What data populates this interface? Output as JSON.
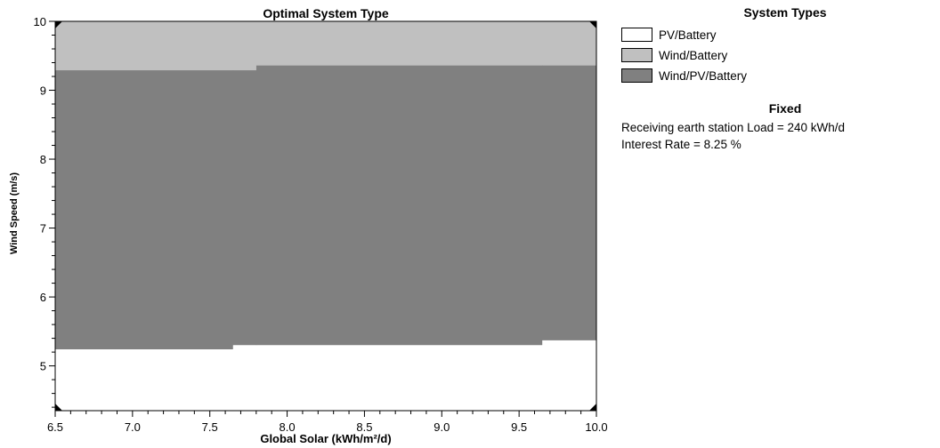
{
  "chart_data": {
    "type": "area",
    "title": "Optimal System Type",
    "xlabel": "Global Solar (kWh/m²/d)",
    "ylabel": "Wind Speed (m/s)",
    "xlim": [
      6.5,
      10.0
    ],
    "ylim": [
      4.35,
      10.0
    ],
    "xticks": [
      "6.5",
      "7.0",
      "7.5",
      "8.0",
      "8.5",
      "9.0",
      "9.5",
      "10.0"
    ],
    "yticks": [
      "5",
      "6",
      "7",
      "8",
      "9",
      "10"
    ],
    "regions": [
      {
        "name": "PV/Battery",
        "color": "#ffffff",
        "note": "lower region (below boundary)"
      },
      {
        "name": "Wind/PV/Battery",
        "color": "#808080",
        "lower_boundary": [
          {
            "x0": 6.5,
            "x1": 7.65,
            "y": 5.24
          },
          {
            "x0": 7.65,
            "x1": 9.65,
            "y": 5.3
          },
          {
            "x0": 9.65,
            "x1": 10.0,
            "y": 5.37
          }
        ],
        "upper_boundary": [
          {
            "x0": 6.5,
            "x1": 7.8,
            "y": 9.29
          },
          {
            "x0": 7.8,
            "x1": 10.0,
            "y": 9.36
          }
        ]
      },
      {
        "name": "Wind/Battery",
        "color": "#c0c0c0",
        "note": "upper region (above boundary)"
      }
    ]
  },
  "legend": {
    "title": "System Types",
    "items": [
      {
        "label": "PV/Battery",
        "color": "#ffffff"
      },
      {
        "label": "Wind/Battery",
        "color": "#c0c0c0"
      },
      {
        "label": "Wind/PV/Battery",
        "color": "#808080"
      }
    ]
  },
  "fixed": {
    "title": "Fixed",
    "lines": [
      "Receiving earth station Load  = 240 kWh/d",
      "Interest Rate = 8.25 %"
    ]
  }
}
